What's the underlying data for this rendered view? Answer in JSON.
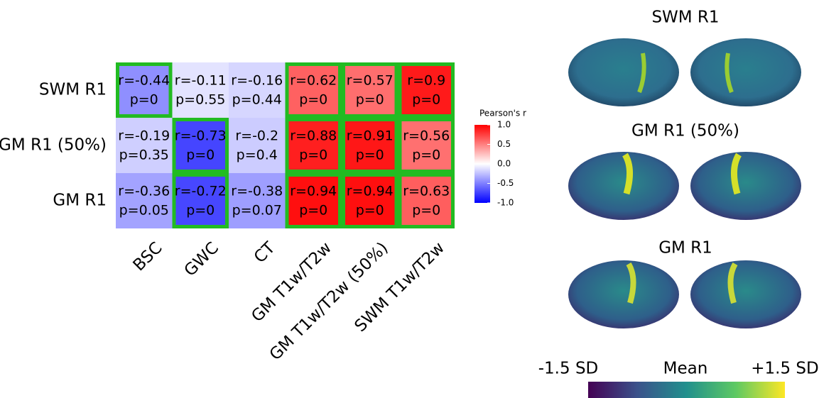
{
  "chart_data": {
    "type": "heatmap",
    "x_categories": [
      "BSC",
      "GWC",
      "CT",
      "GM T1w/T2w",
      "GM T1w/T2w (50%)",
      "SWM T1w/T2w"
    ],
    "y_categories": [
      "SWM R1",
      "GM R1 (50%)",
      "GM R1"
    ],
    "values": [
      [
        -0.44,
        -0.11,
        -0.16,
        0.62,
        0.57,
        0.9
      ],
      [
        -0.19,
        -0.73,
        -0.2,
        0.88,
        0.91,
        0.56
      ],
      [
        -0.36,
        -0.72,
        -0.38,
        0.94,
        0.94,
        0.63
      ]
    ],
    "value_labels": [
      [
        "r=-0.44",
        "r=-0.11",
        "r=-0.16",
        "r=0.62",
        "r=0.57",
        "r=0.9"
      ],
      [
        "r=-0.19",
        "r=-0.73",
        "r=-0.2",
        "r=0.88",
        "r=0.91",
        "r=0.56"
      ],
      [
        "r=-0.36",
        "r=-0.72",
        "r=-0.38",
        "r=0.94",
        "r=0.94",
        "r=0.63"
      ]
    ],
    "p_labels": [
      [
        "p=0",
        "p=0.55",
        "p=0.44",
        "p=0",
        "p=0",
        "p=0"
      ],
      [
        "p=0.35",
        "p=0",
        "p=0.4",
        "p=0",
        "p=0",
        "p=0"
      ],
      [
        "p=0.05",
        "p=0",
        "p=0.07",
        "p=0",
        "p=0",
        "p=0"
      ]
    ],
    "highlighted": [
      [
        true,
        false,
        false,
        true,
        true,
        true
      ],
      [
        false,
        true,
        false,
        true,
        true,
        true
      ],
      [
        false,
        true,
        false,
        true,
        true,
        true
      ]
    ],
    "highlight_color": "#22bb22",
    "colormap": [
      "#0000ff",
      "#ffffff",
      "#ff0000"
    ],
    "colorbar_title": "Pearson's r",
    "zlim": [
      -1,
      1
    ],
    "zticks": [
      {
        "value": 1,
        "label": "1.0"
      },
      {
        "value": 0.5,
        "label": "0.5"
      },
      {
        "value": 0,
        "label": "0.0"
      },
      {
        "value": -0.5,
        "label": "-0.5"
      },
      {
        "value": -1,
        "label": "-1.0"
      }
    ]
  },
  "brain_maps": {
    "titles": [
      "SWM R1",
      "GM R1 (50%)",
      "GM R1"
    ],
    "scale_labels": [
      "-1.5 SD",
      "Mean",
      "+1.5 SD"
    ]
  }
}
